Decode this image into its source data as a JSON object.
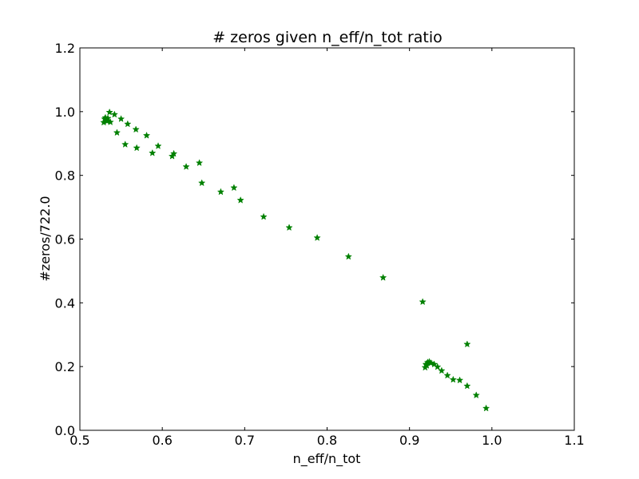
{
  "chart_data": {
    "type": "scatter",
    "title": "# zeros given n_eff/n_tot ratio",
    "xlabel": "n_eff/n_tot",
    "ylabel": "#zeros/722.0",
    "xlim": [
      0.5,
      1.1
    ],
    "ylim": [
      0.0,
      1.2
    ],
    "xticks": [
      0.5,
      0.6,
      0.7,
      0.8,
      0.9,
      1.0,
      1.1
    ],
    "yticks": [
      0.0,
      0.2,
      0.4,
      0.6,
      0.8,
      1.0,
      1.2
    ],
    "xtick_labels": [
      "0.5",
      "0.6",
      "0.7",
      "0.8",
      "0.9",
      "1.0",
      "1.1"
    ],
    "ytick_labels": [
      "0.0",
      "0.2",
      "0.4",
      "0.6",
      "0.8",
      "1.0",
      "1.2"
    ],
    "grid": false,
    "marker": "star",
    "color": "#008000",
    "series": [
      {
        "x": [
          0.529,
          0.53,
          0.531,
          0.532,
          0.533,
          0.534,
          0.536,
          0.537,
          0.542,
          0.545,
          0.55,
          0.555,
          0.558,
          0.568,
          0.569,
          0.581,
          0.588,
          0.595,
          0.612,
          0.614,
          0.629,
          0.645,
          0.648,
          0.671,
          0.687,
          0.695,
          0.723,
          0.754,
          0.788,
          0.826,
          0.868,
          0.916,
          0.919,
          0.92,
          0.921,
          0.922,
          0.924,
          0.926,
          0.93,
          0.934,
          0.939,
          0.946,
          0.953,
          0.961,
          0.97,
          0.97,
          0.981,
          0.993
        ],
        "y": [
          0.966,
          0.977,
          0.981,
          0.975,
          0.97,
          0.979,
          0.998,
          0.967,
          0.991,
          0.934,
          0.977,
          0.897,
          0.961,
          0.944,
          0.886,
          0.925,
          0.87,
          0.892,
          0.86,
          0.868,
          0.827,
          0.839,
          0.776,
          0.748,
          0.761,
          0.722,
          0.67,
          0.636,
          0.604,
          0.545,
          0.479,
          0.403,
          0.197,
          0.207,
          0.203,
          0.213,
          0.215,
          0.211,
          0.207,
          0.199,
          0.187,
          0.172,
          0.159,
          0.157,
          0.139,
          0.27,
          0.11,
          0.069
        ]
      }
    ]
  }
}
